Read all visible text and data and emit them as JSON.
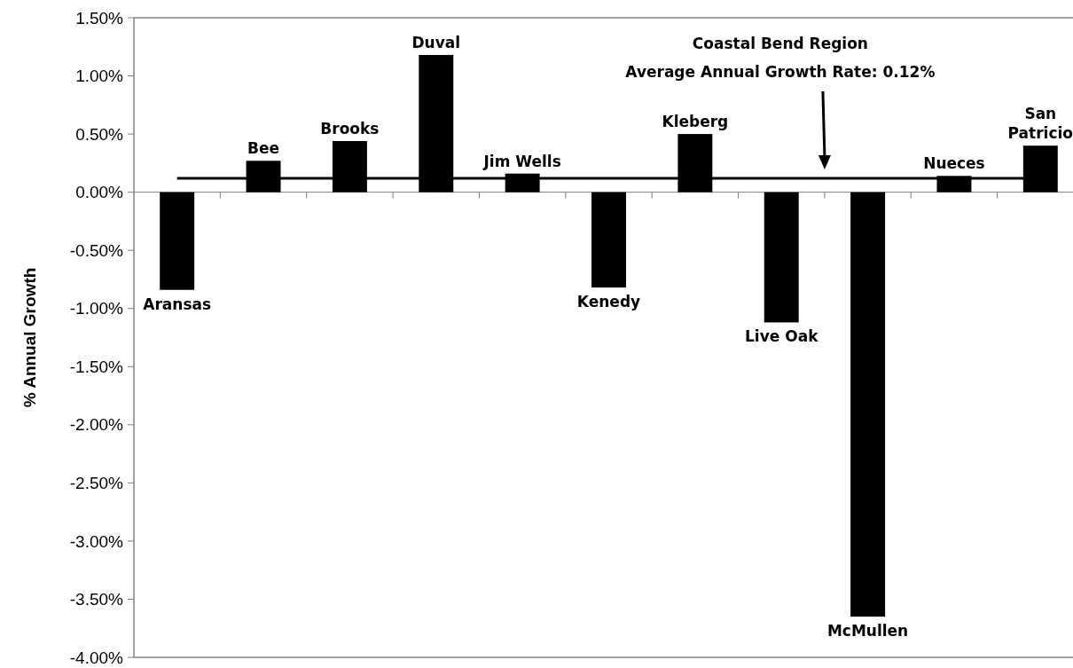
{
  "chart_data": {
    "type": "bar",
    "ylabel": "% Annual Growth",
    "categories": [
      "Aransas",
      "Bee",
      "Brooks",
      "Duval",
      "Jim Wells",
      "Kenedy",
      "Kleberg",
      "Live Oak",
      "McMullen",
      "Nueces",
      "San Patricio"
    ],
    "values": [
      -0.84,
      0.27,
      0.44,
      1.18,
      0.16,
      -0.82,
      0.5,
      -1.12,
      -3.65,
      0.14,
      0.4
    ],
    "color": "#000000",
    "ylim": [
      -4,
      1.5
    ],
    "yticks": [
      {
        "value": 1.5,
        "label": "1.50%"
      },
      {
        "value": 1,
        "label": "1.00%"
      },
      {
        "value": 0.5,
        "label": "0.50%"
      },
      {
        "value": 0,
        "label": "0.00%"
      },
      {
        "value": -0.5,
        "label": "-0.50%"
      },
      {
        "value": -1,
        "label": "-1.00%"
      },
      {
        "value": -1.5,
        "label": "-1.50%"
      },
      {
        "value": -2,
        "label": "-2.00%"
      },
      {
        "value": -2.5,
        "label": "-2.50%"
      },
      {
        "value": -3,
        "label": "-3.00%"
      },
      {
        "value": -3.5,
        "label": "-3.50%"
      },
      {
        "value": -4,
        "label": "-4.00%"
      }
    ],
    "ref_lines": [
      {
        "axis": "y",
        "value": 0.12,
        "label": "Coastal Bend Region\nAverage Annual Growth Rate: 0.12%",
        "color": "#000000"
      }
    ],
    "tick_labels": "y"
  }
}
